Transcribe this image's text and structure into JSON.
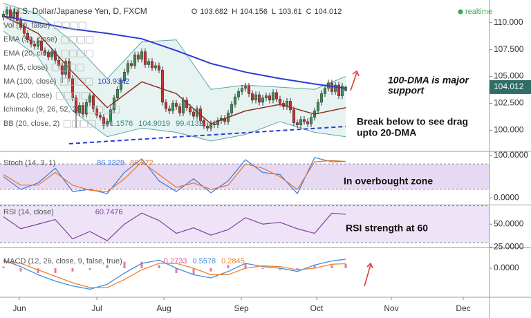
{
  "chart_data": [
    {
      "type": "candlestick",
      "title": "U.S. Dollar/Japanese Yen, D, FXCM",
      "ohlc_labels": [
        "O",
        "H",
        "L",
        "C"
      ],
      "status": "realtime",
      "up_color": "#3d8c57",
      "down_color": "#c9302c",
      "xlim": [
        -1,
        140.6
      ],
      "xticks": [
        {
          "value": 4.6,
          "label": "Jun"
        },
        {
          "value": 27,
          "label": "Jul"
        },
        {
          "value": 46.4,
          "label": "Aug"
        },
        {
          "value": 68.8,
          "label": "Sep"
        },
        {
          "value": 90.6,
          "label": "Oct"
        },
        {
          "value": 112.2,
          "label": "Nov"
        },
        {
          "value": 133,
          "label": "Dec"
        }
      ],
      "ylim": [
        98.1,
        112.1
      ],
      "yticks": [
        {
          "value": 100,
          "label": "100.000"
        },
        {
          "value": 102.5,
          "label": "102.500"
        },
        {
          "value": 105,
          "label": "105.000"
        },
        {
          "value": 107.5,
          "label": "107.500"
        },
        {
          "value": 110,
          "label": "110.000"
        }
      ],
      "open": [
        110.5,
        110.8,
        111.2,
        110.5,
        111.0,
        110.2,
        109.6,
        109.0,
        108.4,
        108.0,
        107.8,
        108.3,
        107.4,
        107.2,
        106.8,
        107.3,
        106.5,
        106.0,
        105.2,
        106.4,
        104.8,
        103.0,
        101.6,
        102.3,
        101.5,
        102.6,
        103.2,
        102.0,
        101.4,
        101.2,
        100.6,
        100.8,
        101.9,
        103.0,
        103.8,
        104.6,
        105.4,
        106.2,
        106.0,
        107.0,
        106.6,
        107.3,
        106.1,
        106.4,
        105.8,
        106.0,
        105.6,
        102.6,
        102.0,
        101.8,
        102.5,
        102.2,
        101.6,
        102.8,
        102.1,
        101.7,
        101.3,
        102.0,
        100.9,
        100.4,
        100.2,
        100.6,
        100.5,
        100.9,
        101.1,
        100.8,
        101.6,
        102.4,
        103.1,
        103.6,
        103.9,
        104.1,
        103.4,
        102.8,
        103.3,
        102.6,
        103.0,
        103.2,
        102.8,
        103.5,
        102.9,
        102.5,
        102.2,
        102.7,
        101.9,
        100.7,
        100.5,
        101.0,
        100.8,
        100.6,
        101.2,
        101.8,
        102.6,
        103.4,
        103.9,
        104.4,
        103.6,
        104.2,
        103.2,
        103.682
      ],
      "high": [
        111.1,
        111.5,
        111.5,
        111.3,
        111.3,
        110.5,
        109.9,
        109.3,
        108.7,
        108.3,
        108.6,
        108.6,
        107.7,
        107.5,
        107.6,
        107.6,
        106.8,
        106.3,
        106.7,
        106.7,
        105.1,
        103.3,
        102.6,
        102.6,
        102.9,
        103.5,
        103.5,
        102.3,
        101.7,
        101.5,
        101.1,
        102.2,
        103.3,
        104.1,
        104.9,
        105.7,
        106.5,
        106.5,
        107.3,
        107.3,
        107.6,
        107.6,
        106.7,
        106.7,
        106.3,
        106.3,
        105.9,
        102.9,
        102.3,
        102.8,
        102.8,
        102.5,
        103.1,
        103.1,
        102.4,
        102.0,
        102.3,
        102.3,
        101.2,
        100.7,
        100.9,
        100.9,
        101.2,
        101.4,
        101.4,
        101.9,
        102.7,
        103.4,
        103.9,
        104.2,
        104.4,
        104.4,
        103.7,
        103.6,
        103.6,
        103.3,
        103.5,
        103.5,
        103.8,
        103.8,
        103.2,
        102.8,
        103.0,
        103.0,
        102.2,
        101.0,
        101.3,
        101.3,
        101.1,
        101.5,
        102.1,
        102.9,
        103.7,
        104.2,
        104.7,
        104.7,
        104.5,
        104.5,
        104.4,
        104.156
      ],
      "low": [
        110.2,
        110.5,
        110.2,
        110.2,
        109.9,
        109.3,
        108.7,
        108.1,
        107.7,
        107.5,
        107.5,
        107.1,
        106.9,
        106.5,
        106.5,
        106.2,
        105.7,
        104.4,
        104.9,
        104.5,
        102.7,
        100.2,
        101.3,
        101.2,
        101.2,
        102.3,
        101.7,
        101.1,
        100.9,
        100.1,
        100.3,
        100.5,
        101.6,
        102.7,
        103.5,
        104.3,
        105.1,
        105.7,
        105.7,
        106.3,
        106.3,
        105.8,
        105.8,
        105.5,
        105.5,
        105.3,
        102.3,
        101.7,
        101.5,
        101.5,
        101.9,
        101.3,
        101.3,
        101.8,
        101.4,
        101.0,
        101.0,
        100.6,
        100.1,
        99.9,
        99.9,
        100.2,
        100.2,
        100.6,
        100.5,
        100.5,
        101.3,
        102.1,
        102.8,
        103.3,
        103.6,
        103.1,
        102.5,
        102.5,
        102.3,
        102.3,
        102.7,
        102.5,
        102.5,
        102.6,
        102.2,
        101.9,
        101.9,
        101.6,
        100.4,
        100.2,
        100.2,
        100.5,
        100.3,
        100.3,
        100.9,
        101.5,
        102.3,
        103.1,
        103.6,
        103.3,
        103.3,
        102.9,
        102.9,
        103.61
      ],
      "close": [
        110.8,
        111.2,
        110.5,
        111.0,
        110.2,
        109.6,
        109.0,
        108.4,
        108.0,
        107.8,
        108.3,
        107.4,
        107.2,
        106.8,
        107.3,
        106.5,
        106.0,
        105.2,
        106.4,
        104.8,
        103.0,
        101.6,
        102.3,
        101.5,
        102.6,
        103.2,
        102.0,
        101.4,
        101.2,
        100.6,
        100.8,
        101.9,
        103.0,
        103.8,
        104.6,
        105.4,
        106.2,
        106.0,
        107.0,
        106.6,
        107.3,
        106.1,
        106.4,
        105.8,
        106.0,
        105.6,
        102.6,
        102.0,
        101.8,
        102.5,
        102.2,
        101.6,
        102.8,
        102.1,
        101.7,
        101.3,
        102.0,
        100.9,
        100.4,
        100.2,
        100.6,
        100.5,
        100.9,
        101.1,
        100.8,
        101.6,
        102.4,
        103.1,
        103.6,
        103.9,
        104.1,
        103.4,
        102.8,
        103.3,
        102.6,
        103.0,
        103.2,
        102.8,
        103.5,
        102.9,
        102.5,
        102.2,
        102.7,
        101.9,
        100.7,
        100.5,
        101.0,
        100.8,
        100.6,
        101.2,
        101.8,
        102.6,
        103.4,
        103.9,
        104.4,
        103.6,
        104.2,
        103.2,
        104.1,
        104.012
      ],
      "envelope": {
        "color": "#5aa6a6",
        "fill": "#e6f3f1",
        "x": [
          0,
          10,
          20,
          30,
          40,
          50,
          60,
          70,
          80,
          90,
          99
        ],
        "upper": [
          111.8,
          110.8,
          108.2,
          104.8,
          108.2,
          108.4,
          103.8,
          104.2,
          104.0,
          103.8,
          105.0
        ],
        "lower": [
          109.2,
          106.8,
          101.8,
          99.4,
          100.2,
          99.8,
          99.0,
          99.6,
          100.8,
          99.8,
          99.4
        ]
      },
      "overlays": [
        {
          "color": "#2a3cd6",
          "x": [
            0,
            10,
            20,
            30,
            40,
            50,
            60,
            70,
            80,
            90,
            99
          ],
          "values": [
            110.6,
            110.0,
            109.4,
            109.0,
            108.5,
            107.4,
            106.2,
            105.4,
            104.8,
            104.3,
            103.9
          ]
        },
        {
          "color": "#8b2f22",
          "x": [
            0,
            10,
            20,
            30,
            40,
            50,
            60,
            70,
            80,
            90,
            99
          ],
          "values": [
            110.6,
            109.0,
            105.4,
            102.1,
            104.5,
            103.4,
            100.6,
            101.8,
            102.4,
            101.5,
            102.1
          ]
        }
      ],
      "trendline": {
        "color": "#2a3cd6",
        "x": [
          19,
          99
        ],
        "values": [
          98.75,
          100.35
        ]
      },
      "indicators": [
        {
          "name": "Vol (20, false)"
        },
        {
          "name": "EMA (50, close)"
        },
        {
          "name": "EMA (20, close)"
        },
        {
          "name": "MA (5, close)"
        },
        {
          "name": "MA (100, close)",
          "values": [
            103.9342
          ]
        },
        {
          "name": "MA (20, close)"
        },
        {
          "name": "Ichimoku (9, 26, 52, 26)"
        },
        {
          "name": "BB (20, close, 2)",
          "values": [
            101.1576,
            104.9019,
            99.4132
          ]
        }
      ],
      "annotations": [
        "100-DMA is major",
        "support",
        "Break below to see drag",
        "upto 20-DMA"
      ]
    },
    {
      "type": "oscillator",
      "title": "Stoch (14, 3, 1)",
      "ylim": [
        -16,
        108
      ],
      "yticks": [
        {
          "value": 100,
          "label": "100.0000"
        },
        {
          "value": 0,
          "label": "0.0000"
        }
      ],
      "band": [
        20,
        80
      ],
      "band_color": "#e8d9f3",
      "x": [
        0,
        5,
        10,
        15,
        20,
        25,
        30,
        35,
        40,
        45,
        50,
        55,
        60,
        65,
        70,
        75,
        80,
        85,
        90,
        95,
        99
      ],
      "series": [
        {
          "color": "#3c78d8",
          "legend_value": 86.3329,
          "values": [
            50,
            20,
            35,
            70,
            15,
            20,
            10,
            60,
            92,
            40,
            15,
            45,
            12,
            40,
            90,
            60,
            55,
            10,
            95,
            85,
            86
          ]
        },
        {
          "color": "#e2762c",
          "legend_value": 86.272,
          "values": [
            55,
            30,
            30,
            60,
            30,
            18,
            15,
            45,
            85,
            55,
            25,
            35,
            20,
            30,
            80,
            70,
            50,
            20,
            85,
            88,
            86
          ]
        }
      ],
      "annotations": [
        "In overbought zone"
      ]
    },
    {
      "type": "oscillator",
      "title": "RSI (14, close)",
      "ylim": [
        24.6,
        70.5
      ],
      "yticks": [
        {
          "value": 50,
          "label": "50.0000"
        },
        {
          "value": 25,
          "label": "25.0000"
        }
      ],
      "band": [
        30,
        70
      ],
      "band_color": "#efe4f7",
      "x": [
        0,
        5,
        10,
        15,
        20,
        25,
        30,
        35,
        40,
        45,
        50,
        55,
        60,
        65,
        70,
        75,
        80,
        85,
        90,
        95,
        99
      ],
      "series": [
        {
          "color": "#7b3f9e",
          "legend_value": 60.7476,
          "values": [
            58,
            45,
            50,
            55,
            34,
            42,
            32,
            50,
            62,
            54,
            40,
            46,
            38,
            44,
            57,
            50,
            52,
            45,
            40,
            62,
            60.7
          ]
        }
      ],
      "annotations": [
        "RSI strength at 60"
      ]
    },
    {
      "type": "macd",
      "title": "MACD (12, 26, close, 9, false, true)",
      "ylim": [
        -1.8,
        1.2
      ],
      "yticks": [
        {
          "value": 0,
          "label": "0.0000"
        }
      ],
      "x": [
        0,
        5,
        10,
        15,
        20,
        25,
        30,
        35,
        40,
        45,
        50,
        55,
        60,
        65,
        70,
        75,
        80,
        85,
        90,
        95,
        99
      ],
      "histogram": {
        "color": "#e0588c",
        "legend_value": 0.2733,
        "values": [
          0.1,
          -0.2,
          -0.3,
          -0.3,
          -0.2,
          -0.1,
          0.2,
          0.4,
          0.4,
          0.2,
          -0.3,
          -0.4,
          -0.2,
          0.2,
          0.3,
          -0.05,
          -0.1,
          -0.1,
          0.2,
          0.2,
          0.27
        ]
      },
      "series": [
        {
          "color": "#3c8fd8",
          "legend_value": 0.5578,
          "values": [
            0.5,
            0.1,
            -0.4,
            -0.8,
            -1.1,
            -1.3,
            -1.0,
            -0.3,
            0.3,
            0.5,
            0.0,
            -0.4,
            -0.6,
            -0.2,
            0.3,
            0.1,
            0.0,
            -0.2,
            0.2,
            0.45,
            0.56
          ]
        },
        {
          "color": "#f0822a",
          "legend_value": 0.2845,
          "values": [
            0.4,
            0.3,
            -0.1,
            -0.5,
            -0.9,
            -1.2,
            -1.2,
            -0.7,
            -0.1,
            0.3,
            0.3,
            0.0,
            -0.4,
            -0.4,
            0.0,
            0.15,
            0.1,
            -0.1,
            0.0,
            0.25,
            0.28
          ]
        }
      ]
    }
  ]
}
